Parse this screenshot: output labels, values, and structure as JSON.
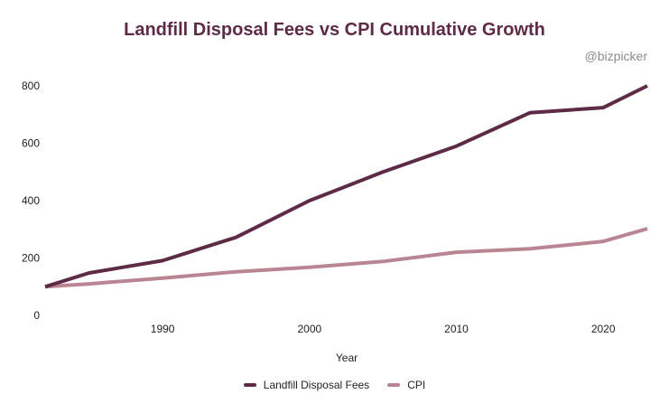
{
  "chart_data": {
    "type": "line",
    "title": "Landfill Disposal Fees vs CPI Cumulative Growth",
    "watermark": "@bizpicker",
    "xlabel": "Year",
    "ylabel": "",
    "xlim": [
      1982,
      2023
    ],
    "ylim": [
      0,
      800
    ],
    "x_ticks": [
      1990,
      2000,
      2010,
      2020
    ],
    "y_ticks": [
      0,
      200,
      400,
      600,
      800
    ],
    "grid": false,
    "legend_position": "bottom",
    "series": [
      {
        "name": "Landfill Disposal Fees",
        "color": "#5e2b47",
        "x": [
          1982,
          1985,
          1990,
          1995,
          2000,
          2005,
          2010,
          2015,
          2020,
          2023
        ],
        "y": [
          100,
          148,
          191,
          272,
          400,
          500,
          590,
          706,
          724,
          800
        ]
      },
      {
        "name": "CPI",
        "color": "#b98593",
        "x": [
          1982,
          1985,
          1990,
          1995,
          2000,
          2005,
          2010,
          2015,
          2020,
          2023
        ],
        "y": [
          100,
          110,
          130,
          152,
          168,
          188,
          220,
          232,
          258,
          302
        ]
      }
    ]
  }
}
